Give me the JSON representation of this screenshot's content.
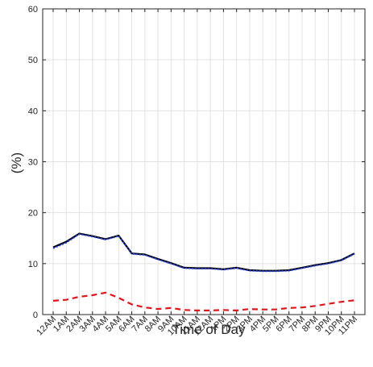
{
  "chart_data": {
    "type": "line",
    "title": "",
    "xlabel": "Time of Day",
    "ylabel": "(%)",
    "ylim": [
      0,
      60
    ],
    "yticks": [
      0,
      10,
      20,
      30,
      40,
      50,
      60
    ],
    "categories": [
      "12AM",
      "1AM",
      "2AM",
      "3AM",
      "4AM",
      "5AM",
      "6AM",
      "7AM",
      "8AM",
      "9AM",
      "10AM",
      "11AM",
      "12AM",
      "1PM",
      "2PM",
      "3PM",
      "4PM",
      "5PM",
      "6PM",
      "7PM",
      "8PM",
      "9PM",
      "10PM",
      "11PM"
    ],
    "grid": true,
    "legend": "none",
    "series": [
      {
        "color": "#000000",
        "style": "solid",
        "values": [
          13.2,
          14.3,
          15.9,
          15.4,
          14.8,
          15.5,
          12.0,
          11.8,
          10.9,
          10.1,
          9.2,
          9.1,
          9.1,
          8.9,
          9.2,
          8.7,
          8.6,
          8.6,
          8.7,
          9.2,
          9.7,
          10.1,
          10.7,
          12.0
        ]
      },
      {
        "color": "#2040ff",
        "style": "dotted",
        "values": [
          13.0,
          14.1,
          15.8,
          15.3,
          14.7,
          15.4,
          11.9,
          11.7,
          10.8,
          10.0,
          9.1,
          9.0,
          9.0,
          8.8,
          9.1,
          8.6,
          8.5,
          8.5,
          8.6,
          9.1,
          9.6,
          10.0,
          10.6,
          11.9
        ]
      },
      {
        "color": "#e8121a",
        "style": "dashed",
        "values": [
          2.7,
          2.9,
          3.5,
          3.8,
          4.3,
          3.3,
          2.0,
          1.4,
          1.1,
          1.3,
          0.9,
          0.8,
          0.8,
          0.9,
          0.8,
          1.1,
          1.0,
          1.0,
          1.3,
          1.4,
          1.7,
          2.1,
          2.5,
          2.8
        ]
      }
    ]
  }
}
